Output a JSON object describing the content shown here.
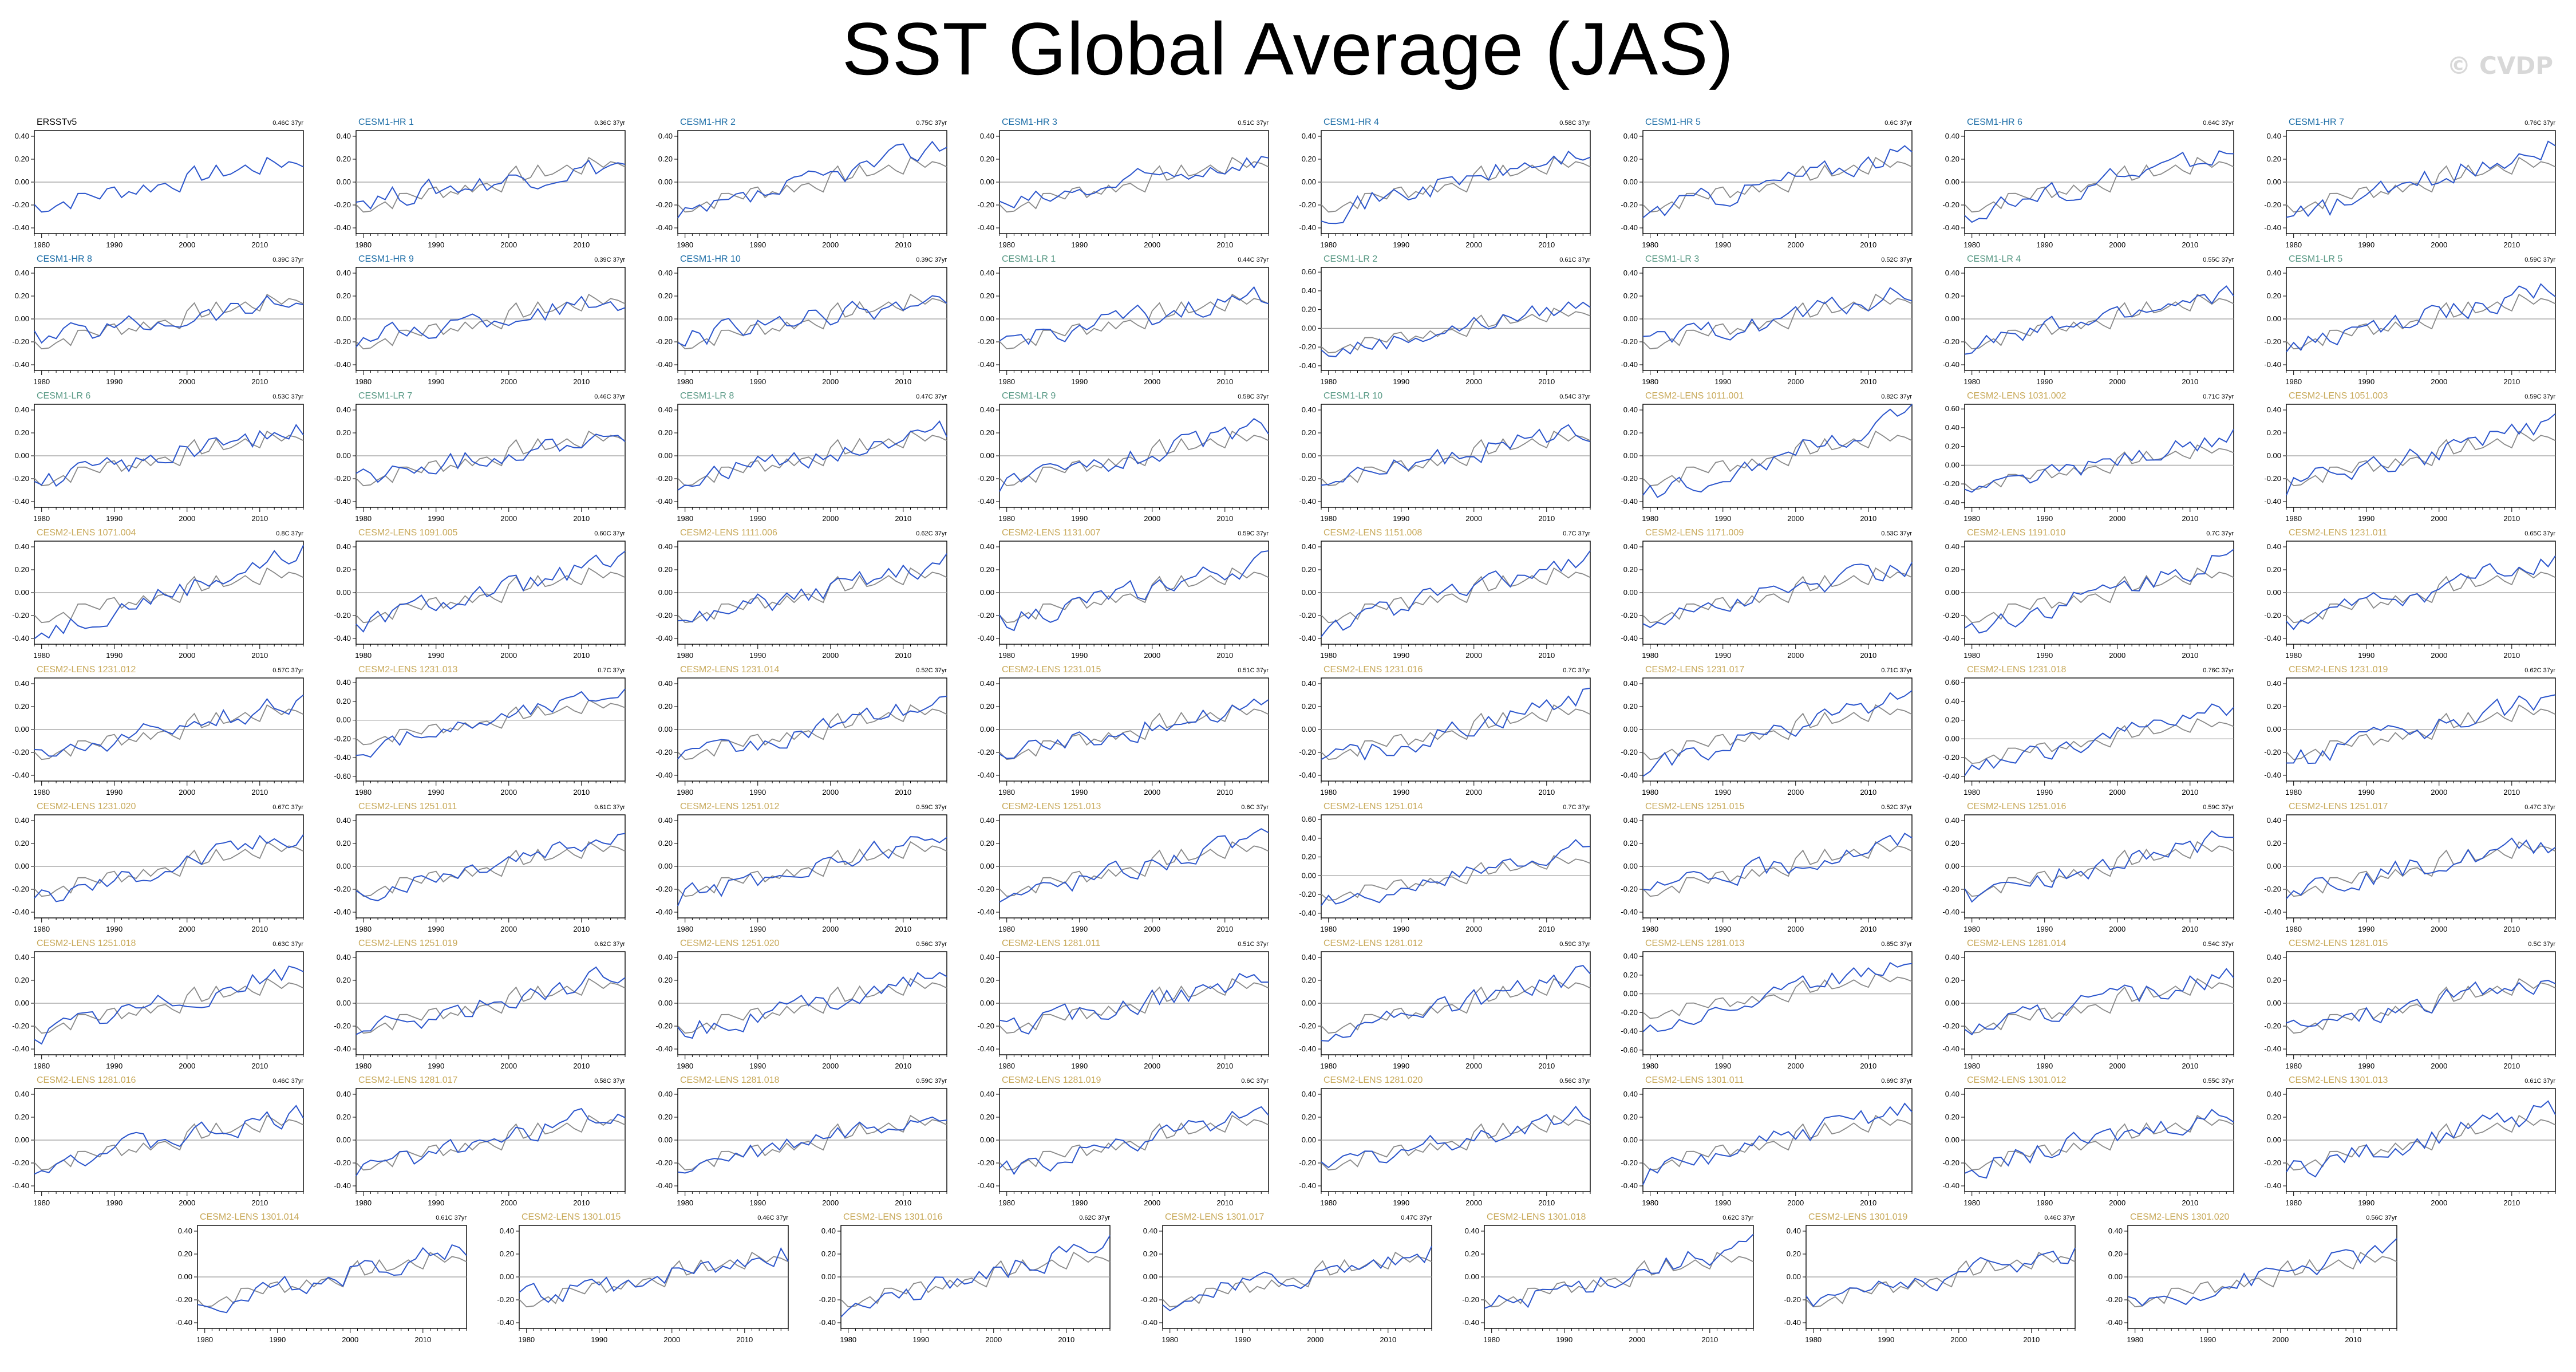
{
  "title": "SST Global Average (JAS)",
  "watermark": "© CVDP",
  "chart_data": {
    "type": "line",
    "observed_name": "ERSSTv5",
    "x_range": [
      1979,
      2016
    ],
    "x_ticks": [
      1980,
      1990,
      2000,
      2010
    ],
    "y_ticks_default": [
      -0.4,
      -0.2,
      0.0,
      0.2,
      0.4
    ],
    "y_ticks_wide": [
      -0.6,
      -0.4,
      -0.2,
      0.0,
      0.2,
      0.4,
      0.6
    ],
    "grid": false,
    "colors": {
      "observed_panel": "#000000",
      "observed_overlay": "#8a8a8a",
      "model_line": "#2b55cc",
      "hr_label": "#1f6fa8",
      "lr_label": "#5a9a86",
      "lens_label": "#c8a95a",
      "obs_label": "#000000"
    },
    "panels": [
      {
        "name": "ERSSTv5",
        "trend": "0.46C 37yr",
        "group": "obs",
        "ylim": [
          -0.45,
          0.45
        ]
      },
      {
        "name": "CESM1-HR 1",
        "trend": "0.36C 37yr",
        "group": "hr",
        "ylim": [
          -0.45,
          0.45
        ]
      },
      {
        "name": "CESM1-HR 2",
        "trend": "0.75C 37yr",
        "group": "hr",
        "ylim": [
          -0.45,
          0.45
        ]
      },
      {
        "name": "CESM1-HR 3",
        "trend": "0.51C 37yr",
        "group": "hr",
        "ylim": [
          -0.45,
          0.45
        ]
      },
      {
        "name": "CESM1-HR 4",
        "trend": "0.58C 37yr",
        "group": "hr",
        "ylim": [
          -0.45,
          0.45
        ]
      },
      {
        "name": "CESM1-HR 5",
        "trend": "0.6C 37yr",
        "group": "hr",
        "ylim": [
          -0.45,
          0.45
        ]
      },
      {
        "name": "CESM1-HR 6",
        "trend": "0.64C 37yr",
        "group": "hr",
        "ylim": [
          -0.45,
          0.45
        ]
      },
      {
        "name": "CESM1-HR 7",
        "trend": "0.76C 37yr",
        "group": "hr",
        "ylim": [
          -0.45,
          0.45
        ]
      },
      {
        "name": "CESM1-HR 8",
        "trend": "0.39C 37yr",
        "group": "hr",
        "ylim": [
          -0.45,
          0.45
        ]
      },
      {
        "name": "CESM1-HR 9",
        "trend": "0.39C 37yr",
        "group": "hr",
        "ylim": [
          -0.45,
          0.45
        ]
      },
      {
        "name": "CESM1-HR 10",
        "trend": "0.39C 37yr",
        "group": "hr",
        "ylim": [
          -0.45,
          0.45
        ]
      },
      {
        "name": "CESM1-LR 1",
        "trend": "0.44C 37yr",
        "group": "lr",
        "ylim": [
          -0.45,
          0.45
        ]
      },
      {
        "name": "CESM1-LR 2",
        "trend": "0.61C 37yr",
        "group": "lr",
        "ylim": [
          -0.45,
          0.65
        ]
      },
      {
        "name": "CESM1-LR 3",
        "trend": "0.52C 37yr",
        "group": "lr",
        "ylim": [
          -0.45,
          0.45
        ]
      },
      {
        "name": "CESM1-LR 4",
        "trend": "0.55C 37yr",
        "group": "lr",
        "ylim": [
          -0.45,
          0.45
        ]
      },
      {
        "name": "CESM1-LR 5",
        "trend": "0.59C 37yr",
        "group": "lr",
        "ylim": [
          -0.45,
          0.45
        ]
      },
      {
        "name": "CESM1-LR 6",
        "trend": "0.53C 37yr",
        "group": "lr",
        "ylim": [
          -0.45,
          0.45
        ]
      },
      {
        "name": "CESM1-LR 7",
        "trend": "0.46C 37yr",
        "group": "lr",
        "ylim": [
          -0.45,
          0.45
        ]
      },
      {
        "name": "CESM1-LR 8",
        "trend": "0.47C 37yr",
        "group": "lr",
        "ylim": [
          -0.45,
          0.45
        ]
      },
      {
        "name": "CESM1-LR 9",
        "trend": "0.58C 37yr",
        "group": "lr",
        "ylim": [
          -0.45,
          0.45
        ]
      },
      {
        "name": "CESM1-LR 10",
        "trend": "0.54C 37yr",
        "group": "lr",
        "ylim": [
          -0.45,
          0.45
        ]
      },
      {
        "name": "CESM2-LENS 1011.001",
        "trend": "0.82C 37yr",
        "group": "lens",
        "ylim": [
          -0.45,
          0.45
        ]
      },
      {
        "name": "CESM2-LENS 1031.002",
        "trend": "0.71C 37yr",
        "group": "lens",
        "ylim": [
          -0.45,
          0.65
        ]
      },
      {
        "name": "CESM2-LENS 1051.003",
        "trend": "0.59C 37yr",
        "group": "lens",
        "ylim": [
          -0.45,
          0.45
        ]
      },
      {
        "name": "CESM2-LENS 1071.004",
        "trend": "0.8C 37yr",
        "group": "lens",
        "ylim": [
          -0.45,
          0.45
        ]
      },
      {
        "name": "CESM2-LENS 1091.005",
        "trend": "0.60C 37yr",
        "group": "lens",
        "ylim": [
          -0.45,
          0.45
        ]
      },
      {
        "name": "CESM2-LENS 1111.006",
        "trend": "0.62C 37yr",
        "group": "lens",
        "ylim": [
          -0.45,
          0.45
        ]
      },
      {
        "name": "CESM2-LENS 1131.007",
        "trend": "0.59C 37yr",
        "group": "lens",
        "ylim": [
          -0.45,
          0.45
        ]
      },
      {
        "name": "CESM2-LENS 1151.008",
        "trend": "0.7C 37yr",
        "group": "lens",
        "ylim": [
          -0.45,
          0.45
        ]
      },
      {
        "name": "CESM2-LENS 1171.009",
        "trend": "0.53C 37yr",
        "group": "lens",
        "ylim": [
          -0.45,
          0.45
        ]
      },
      {
        "name": "CESM2-LENS 1191.010",
        "trend": "0.7C 37yr",
        "group": "lens",
        "ylim": [
          -0.45,
          0.45
        ]
      },
      {
        "name": "CESM2-LENS 1231.011",
        "trend": "0.65C 37yr",
        "group": "lens",
        "ylim": [
          -0.45,
          0.45
        ]
      },
      {
        "name": "CESM2-LENS 1231.012",
        "trend": "0.57C 37yr",
        "group": "lens",
        "ylim": [
          -0.45,
          0.45
        ]
      },
      {
        "name": "CESM2-LENS 1231.013",
        "trend": "0.7C 37yr",
        "group": "lens",
        "ylim": [
          -0.65,
          0.45
        ]
      },
      {
        "name": "CESM2-LENS 1231.014",
        "trend": "0.52C 37yr",
        "group": "lens",
        "ylim": [
          -0.45,
          0.45
        ]
      },
      {
        "name": "CESM2-LENS 1231.015",
        "trend": "0.51C 37yr",
        "group": "lens",
        "ylim": [
          -0.45,
          0.45
        ]
      },
      {
        "name": "CESM2-LENS 1231.016",
        "trend": "0.7C 37yr",
        "group": "lens",
        "ylim": [
          -0.45,
          0.45
        ]
      },
      {
        "name": "CESM2-LENS 1231.017",
        "trend": "0.71C 37yr",
        "group": "lens",
        "ylim": [
          -0.45,
          0.45
        ]
      },
      {
        "name": "CESM2-LENS 1231.018",
        "trend": "0.76C 37yr",
        "group": "lens",
        "ylim": [
          -0.45,
          0.65
        ]
      },
      {
        "name": "CESM2-LENS 1231.019",
        "trend": "0.62C 37yr",
        "group": "lens",
        "ylim": [
          -0.45,
          0.45
        ]
      },
      {
        "name": "CESM2-LENS 1231.020",
        "trend": "0.67C 37yr",
        "group": "lens",
        "ylim": [
          -0.45,
          0.45
        ]
      },
      {
        "name": "CESM2-LENS 1251.011",
        "trend": "0.61C 37yr",
        "group": "lens",
        "ylim": [
          -0.45,
          0.45
        ]
      },
      {
        "name": "CESM2-LENS 1251.012",
        "trend": "0.59C 37yr",
        "group": "lens",
        "ylim": [
          -0.45,
          0.45
        ]
      },
      {
        "name": "CESM2-LENS 1251.013",
        "trend": "0.6C 37yr",
        "group": "lens",
        "ylim": [
          -0.45,
          0.45
        ]
      },
      {
        "name": "CESM2-LENS 1251.014",
        "trend": "0.7C 37yr",
        "group": "lens",
        "ylim": [
          -0.45,
          0.65
        ]
      },
      {
        "name": "CESM2-LENS 1251.015",
        "trend": "0.52C 37yr",
        "group": "lens",
        "ylim": [
          -0.45,
          0.45
        ]
      },
      {
        "name": "CESM2-LENS 1251.016",
        "trend": "0.59C 37yr",
        "group": "lens",
        "ylim": [
          -0.45,
          0.45
        ]
      },
      {
        "name": "CESM2-LENS 1251.017",
        "trend": "0.47C 37yr",
        "group": "lens",
        "ylim": [
          -0.45,
          0.45
        ]
      },
      {
        "name": "CESM2-LENS 1251.018",
        "trend": "0.63C 37yr",
        "group": "lens",
        "ylim": [
          -0.45,
          0.45
        ]
      },
      {
        "name": "CESM2-LENS 1251.019",
        "trend": "0.62C 37yr",
        "group": "lens",
        "ylim": [
          -0.45,
          0.45
        ]
      },
      {
        "name": "CESM2-LENS 1251.020",
        "trend": "0.56C 37yr",
        "group": "lens",
        "ylim": [
          -0.45,
          0.45
        ]
      },
      {
        "name": "CESM2-LENS 1281.011",
        "trend": "0.51C 37yr",
        "group": "lens",
        "ylim": [
          -0.45,
          0.45
        ]
      },
      {
        "name": "CESM2-LENS 1281.012",
        "trend": "0.59C 37yr",
        "group": "lens",
        "ylim": [
          -0.45,
          0.45
        ]
      },
      {
        "name": "CESM2-LENS 1281.013",
        "trend": "0.85C 37yr",
        "group": "lens",
        "ylim": [
          -0.65,
          0.45
        ]
      },
      {
        "name": "CESM2-LENS 1281.014",
        "trend": "0.54C 37yr",
        "group": "lens",
        "ylim": [
          -0.45,
          0.45
        ]
      },
      {
        "name": "CESM2-LENS 1281.015",
        "trend": "0.5C 37yr",
        "group": "lens",
        "ylim": [
          -0.45,
          0.45
        ]
      },
      {
        "name": "CESM2-LENS 1281.016",
        "trend": "0.46C 37yr",
        "group": "lens",
        "ylim": [
          -0.45,
          0.45
        ]
      },
      {
        "name": "CESM2-LENS 1281.017",
        "trend": "0.58C 37yr",
        "group": "lens",
        "ylim": [
          -0.45,
          0.45
        ]
      },
      {
        "name": "CESM2-LENS 1281.018",
        "trend": "0.59C 37yr",
        "group": "lens",
        "ylim": [
          -0.45,
          0.45
        ]
      },
      {
        "name": "CESM2-LENS 1281.019",
        "trend": "0.6C 37yr",
        "group": "lens",
        "ylim": [
          -0.45,
          0.45
        ]
      },
      {
        "name": "CESM2-LENS 1281.020",
        "trend": "0.56C 37yr",
        "group": "lens",
        "ylim": [
          -0.45,
          0.45
        ]
      },
      {
        "name": "CESM2-LENS 1301.011",
        "trend": "0.69C 37yr",
        "group": "lens",
        "ylim": [
          -0.45,
          0.45
        ]
      },
      {
        "name": "CESM2-LENS 1301.012",
        "trend": "0.55C 37yr",
        "group": "lens",
        "ylim": [
          -0.45,
          0.45
        ]
      },
      {
        "name": "CESM2-LENS 1301.013",
        "trend": "0.61C 37yr",
        "group": "lens",
        "ylim": [
          -0.45,
          0.45
        ]
      },
      {
        "name": "CESM2-LENS 1301.014",
        "trend": "0.61C 37yr",
        "group": "lens",
        "ylim": [
          -0.45,
          0.45
        ]
      },
      {
        "name": "CESM2-LENS 1301.015",
        "trend": "0.46C 37yr",
        "group": "lens",
        "ylim": [
          -0.45,
          0.45
        ]
      },
      {
        "name": "CESM2-LENS 1301.016",
        "trend": "0.62C 37yr",
        "group": "lens",
        "ylim": [
          -0.45,
          0.45
        ]
      },
      {
        "name": "CESM2-LENS 1301.017",
        "trend": "0.47C 37yr",
        "group": "lens",
        "ylim": [
          -0.45,
          0.45
        ]
      },
      {
        "name": "CESM2-LENS 1301.018",
        "trend": "0.62C 37yr",
        "group": "lens",
        "ylim": [
          -0.45,
          0.45
        ]
      },
      {
        "name": "CESM2-LENS 1301.019",
        "trend": "0.46C 37yr",
        "group": "lens",
        "ylim": [
          -0.45,
          0.45
        ]
      },
      {
        "name": "CESM2-LENS 1301.020",
        "trend": "0.56C 37yr",
        "group": "lens",
        "ylim": [
          -0.45,
          0.45
        ]
      }
    ]
  }
}
